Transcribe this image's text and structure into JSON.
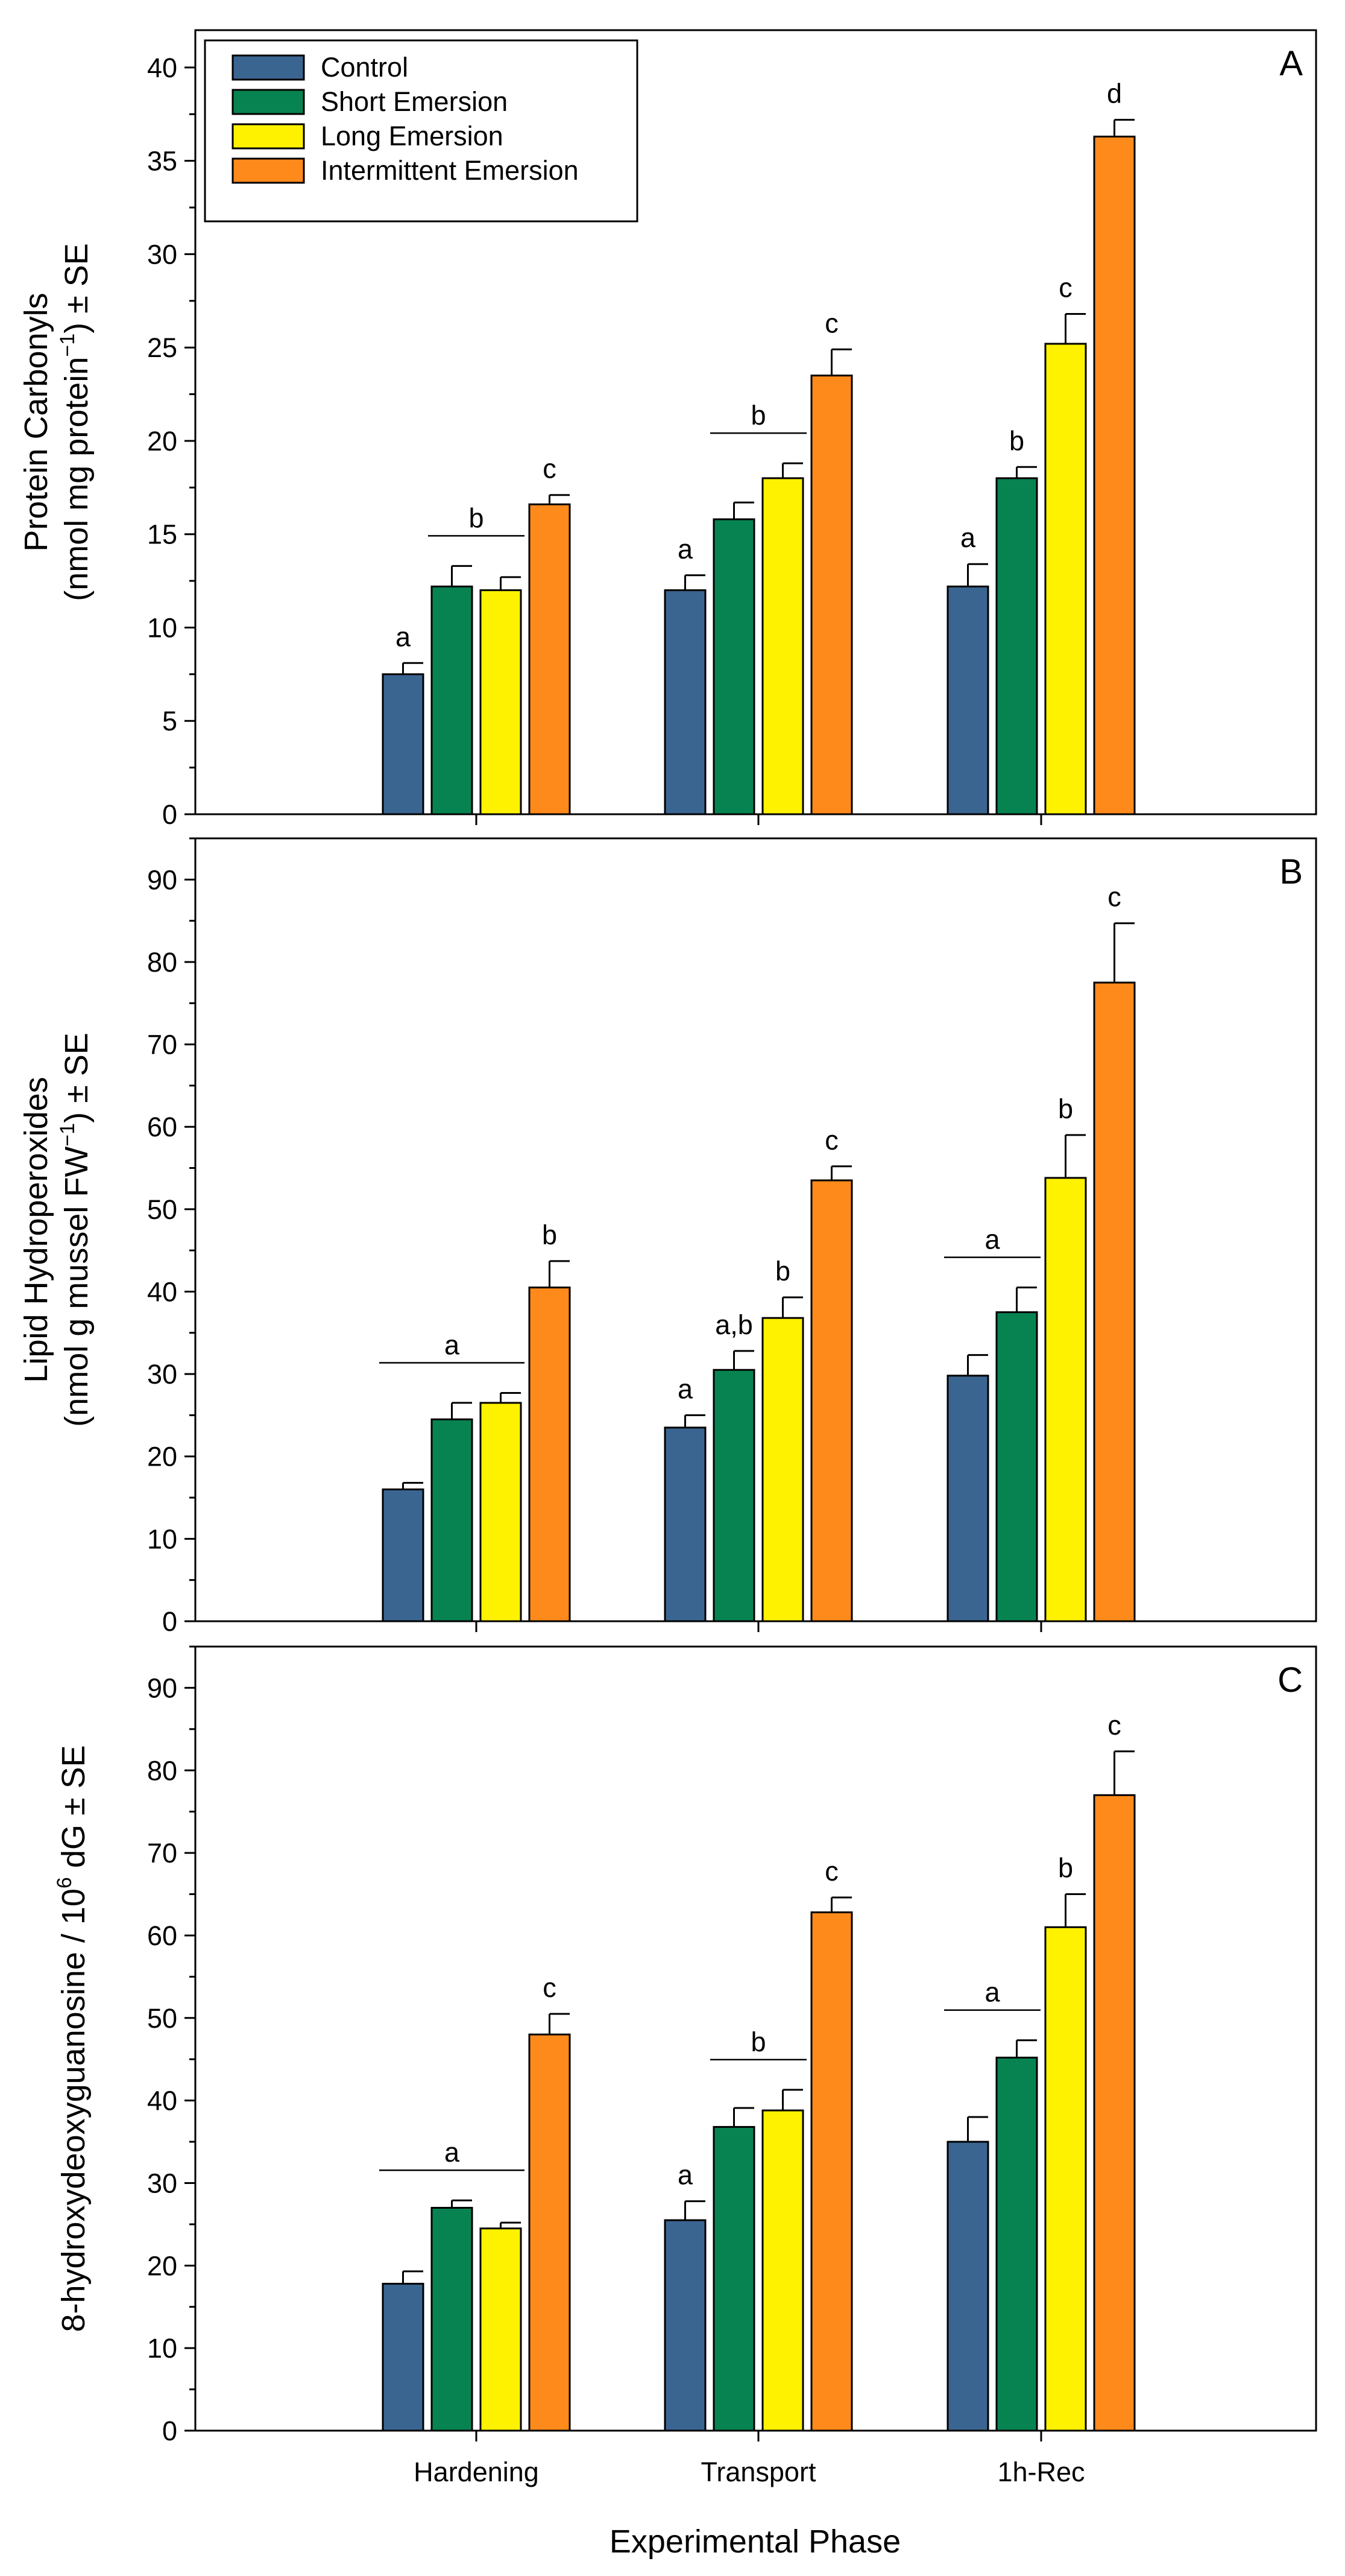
{
  "chart_data": {
    "type": "bar",
    "categories": [
      "Hardening",
      "Transport",
      "1h-Rec"
    ],
    "xlabel": "Experimental Phase",
    "legend": {
      "placement": "top-left of panel A",
      "entries": [
        "Control",
        "Short Emersion",
        "Long Emersion",
        "Intermittent Emersion"
      ]
    },
    "colors": {
      "Control": "#3b6591",
      "Short Emersion": "#078351",
      "Long Emersion": "#fff200",
      "Intermittent Emersion": "#ff8a1c"
    },
    "panels": [
      {
        "letter": "A",
        "ylabel_line1": "Protein Carbonyls",
        "ylabel_line2_pre": "(nmol mg protein",
        "ylabel_line2_sup": "−1",
        "ylabel_line2_post": ") ± SE",
        "ylim": [
          0,
          42
        ],
        "yticks": [
          0,
          5,
          10,
          15,
          20,
          25,
          30,
          35,
          40
        ],
        "series": [
          {
            "name": "Control",
            "values": [
              7.5,
              12.0,
              12.2
            ],
            "errors": [
              0.6,
              0.8,
              1.2
            ]
          },
          {
            "name": "Short Emersion",
            "values": [
              12.2,
              15.8,
              18.0
            ],
            "errors": [
              1.1,
              0.9,
              0.6
            ]
          },
          {
            "name": "Long Emersion",
            "values": [
              12.0,
              18.0,
              25.2
            ],
            "errors": [
              0.7,
              0.8,
              1.6
            ]
          },
          {
            "name": "Intermittent Emersion",
            "values": [
              16.6,
              23.5,
              36.3
            ],
            "errors": [
              0.5,
              1.4,
              0.9
            ]
          }
        ],
        "annotations": [
          {
            "text": "a",
            "category": 0,
            "bars": [
              0,
              0
            ]
          },
          {
            "text": "b",
            "category": 0,
            "bars": [
              1,
              2
            ],
            "line": true
          },
          {
            "text": "c",
            "category": 0,
            "bars": [
              3,
              3
            ]
          },
          {
            "text": "a",
            "category": 1,
            "bars": [
              0,
              0
            ]
          },
          {
            "text": "b",
            "category": 1,
            "bars": [
              1,
              2
            ],
            "line": true
          },
          {
            "text": "c",
            "category": 1,
            "bars": [
              3,
              3
            ]
          },
          {
            "text": "a",
            "category": 2,
            "bars": [
              0,
              0
            ]
          },
          {
            "text": "b",
            "category": 2,
            "bars": [
              1,
              1
            ]
          },
          {
            "text": "c",
            "category": 2,
            "bars": [
              2,
              2
            ]
          },
          {
            "text": "d",
            "category": 2,
            "bars": [
              3,
              3
            ]
          }
        ]
      },
      {
        "letter": "B",
        "ylabel_line1": "Lipid Hydroperoxides",
        "ylabel_line2_pre": "(nmol g mussel FW",
        "ylabel_line2_sup": "−1",
        "ylabel_line2_post": ") ± SE",
        "ylim": [
          0,
          95
        ],
        "yticks": [
          0,
          10,
          20,
          30,
          40,
          50,
          60,
          70,
          80,
          90
        ],
        "series": [
          {
            "name": "Control",
            "values": [
              16.0,
              23.5,
              29.8
            ],
            "errors": [
              0.8,
              1.5,
              2.5
            ]
          },
          {
            "name": "Short Emersion",
            "values": [
              24.5,
              30.5,
              37.5
            ],
            "errors": [
              2.0,
              2.3,
              3.0
            ]
          },
          {
            "name": "Long Emersion",
            "values": [
              26.5,
              36.8,
              53.8
            ],
            "errors": [
              1.2,
              2.5,
              5.2
            ]
          },
          {
            "name": "Intermittent Emersion",
            "values": [
              40.5,
              53.5,
              77.5
            ],
            "errors": [
              3.2,
              1.7,
              7.2
            ]
          }
        ],
        "annotations": [
          {
            "text": "a",
            "category": 0,
            "bars": [
              0,
              2
            ],
            "line": true
          },
          {
            "text": "b",
            "category": 0,
            "bars": [
              3,
              3
            ]
          },
          {
            "text": "a",
            "category": 1,
            "bars": [
              0,
              0
            ]
          },
          {
            "text": "a,b",
            "category": 1,
            "bars": [
              1,
              1
            ]
          },
          {
            "text": "b",
            "category": 1,
            "bars": [
              2,
              2
            ]
          },
          {
            "text": "c",
            "category": 1,
            "bars": [
              3,
              3
            ]
          },
          {
            "text": "a",
            "category": 2,
            "bars": [
              0,
              1
            ],
            "line": true
          },
          {
            "text": "b",
            "category": 2,
            "bars": [
              2,
              2
            ]
          },
          {
            "text": "c",
            "category": 2,
            "bars": [
              3,
              3
            ]
          }
        ]
      },
      {
        "letter": "C",
        "ylabel_line1": "8-hydroxydeoxyguanosine / 10",
        "ylabel_line1_sup": "6",
        "ylabel_line1_post": " dG ± SE",
        "ylim": [
          0,
          95
        ],
        "yticks": [
          0,
          10,
          20,
          30,
          40,
          50,
          60,
          70,
          80,
          90
        ],
        "series": [
          {
            "name": "Control",
            "values": [
              17.8,
              25.5,
              35.0
            ],
            "errors": [
              1.5,
              2.3,
              3.0
            ]
          },
          {
            "name": "Short Emersion",
            "values": [
              27.0,
              36.8,
              45.2
            ],
            "errors": [
              0.9,
              2.3,
              2.1
            ]
          },
          {
            "name": "Long Emersion",
            "values": [
              24.5,
              38.8,
              61.0
            ],
            "errors": [
              0.7,
              2.5,
              4.0
            ]
          },
          {
            "name": "Intermittent Emersion",
            "values": [
              48.0,
              62.8,
              77.0
            ],
            "errors": [
              2.5,
              1.8,
              5.3
            ]
          }
        ],
        "annotations": [
          {
            "text": "a",
            "category": 0,
            "bars": [
              0,
              2
            ],
            "line": true
          },
          {
            "text": "c",
            "category": 0,
            "bars": [
              3,
              3
            ]
          },
          {
            "text": "a",
            "category": 1,
            "bars": [
              0,
              0
            ]
          },
          {
            "text": "b",
            "category": 1,
            "bars": [
              1,
              2
            ],
            "line": true
          },
          {
            "text": "c",
            "category": 1,
            "bars": [
              3,
              3
            ]
          },
          {
            "text": "a",
            "category": 2,
            "bars": [
              0,
              1
            ],
            "line": true
          },
          {
            "text": "b",
            "category": 2,
            "bars": [
              2,
              2
            ]
          },
          {
            "text": "c",
            "category": 2,
            "bars": [
              3,
              3
            ]
          }
        ]
      }
    ]
  }
}
